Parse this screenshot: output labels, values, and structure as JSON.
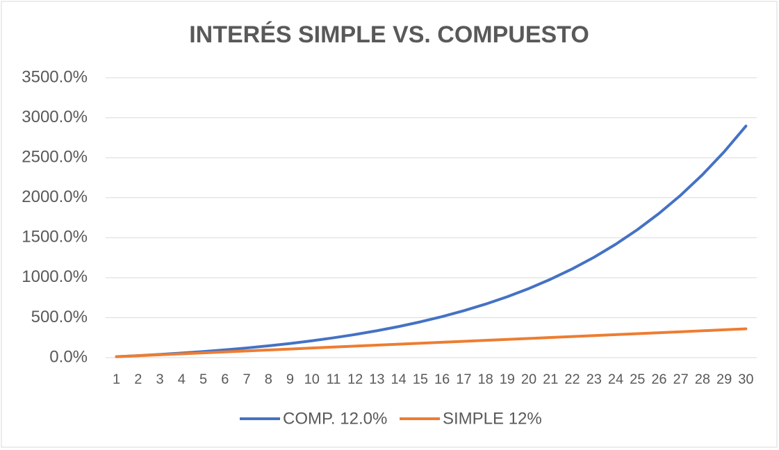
{
  "chart_data": {
    "type": "line",
    "title": "INTERÉS SIMPLE VS. COMPUESTO",
    "categories": [
      1,
      2,
      3,
      4,
      5,
      6,
      7,
      8,
      9,
      10,
      11,
      12,
      13,
      14,
      15,
      16,
      17,
      18,
      19,
      20,
      21,
      22,
      23,
      24,
      25,
      26,
      27,
      28,
      29,
      30
    ],
    "series": [
      {
        "name": "COMP. 12.0%",
        "color": "#4472c4",
        "values": [
          12,
          25.4,
          40.5,
          57.4,
          76.2,
          97.4,
          121.1,
          147.6,
          177.3,
          210.6,
          247.9,
          289.6,
          336.3,
          388.7,
          447.4,
          513,
          586.6,
          669,
          761.3,
          864.6,
          980.4,
          1110,
          1255.2,
          1417.9,
          1600,
          1804,
          2032.5,
          2288.4,
          2575,
          2896
        ]
      },
      {
        "name": "SIMPLE 12%",
        "color": "#ed7d31",
        "values": [
          12,
          24,
          36,
          48,
          60,
          72,
          84,
          96,
          108,
          120,
          132,
          144,
          156,
          168,
          180,
          192,
          204,
          216,
          228,
          240,
          252,
          264,
          276,
          288,
          300,
          312,
          324,
          336,
          348,
          360
        ]
      }
    ],
    "ylim": [
      0,
      3500
    ],
    "yticks": [
      {
        "value": 0,
        "label": "0.0%"
      },
      {
        "value": 500,
        "label": "500.0%"
      },
      {
        "value": 1000,
        "label": "1000.0%"
      },
      {
        "value": 1500,
        "label": "1500.0%"
      },
      {
        "value": 2000,
        "label": "2000.0%"
      },
      {
        "value": 2500,
        "label": "2500.0%"
      },
      {
        "value": 3000,
        "label": "3000.0%"
      },
      {
        "value": 3500,
        "label": "3500.0%"
      }
    ],
    "grid": true,
    "legend": "bottom"
  }
}
